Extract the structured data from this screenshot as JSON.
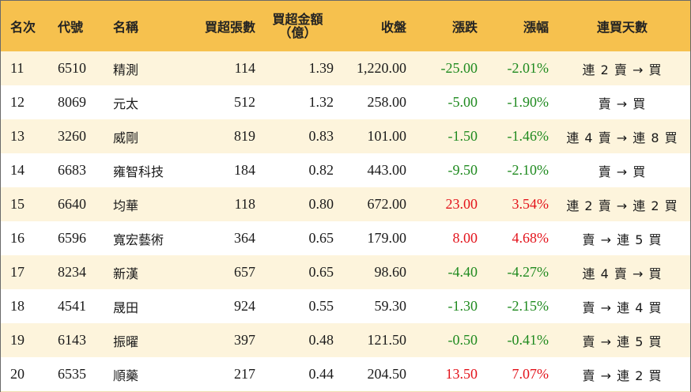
{
  "headers": {
    "rank": "名次",
    "code": "代號",
    "name": "名稱",
    "buy_lots": "買超張數",
    "buy_amount_line1": "買超金額",
    "buy_amount_line2": "（億）",
    "close": "收盤",
    "change": "漲跌",
    "change_pct": "漲幅",
    "streak": "連買天數"
  },
  "colors": {
    "header_bg": "#f6c14e",
    "row_alt_bg": "#fdf4dc",
    "up": "#e3131b",
    "down": "#1f8a1f"
  },
  "rows": [
    {
      "rank": "11",
      "code": "6510",
      "name": "精測",
      "buy_lots": "114",
      "buy_amount": "1.39",
      "close": "1,220.00",
      "change": "-25.00",
      "change_pct": "-2.01%",
      "streak": "連 2 賣 → 買",
      "direction": "down"
    },
    {
      "rank": "12",
      "code": "8069",
      "name": "元太",
      "buy_lots": "512",
      "buy_amount": "1.32",
      "close": "258.00",
      "change": "-5.00",
      "change_pct": "-1.90%",
      "streak": "賣 → 買",
      "direction": "down"
    },
    {
      "rank": "13",
      "code": "3260",
      "name": "威剛",
      "buy_lots": "819",
      "buy_amount": "0.83",
      "close": "101.00",
      "change": "-1.50",
      "change_pct": "-1.46%",
      "streak": "連 4 賣 → 連 8 買",
      "direction": "down"
    },
    {
      "rank": "14",
      "code": "6683",
      "name": "雍智科技",
      "buy_lots": "184",
      "buy_amount": "0.82",
      "close": "443.00",
      "change": "-9.50",
      "change_pct": "-2.10%",
      "streak": "賣 → 買",
      "direction": "down"
    },
    {
      "rank": "15",
      "code": "6640",
      "name": "均華",
      "buy_lots": "118",
      "buy_amount": "0.80",
      "close": "672.00",
      "change": "23.00",
      "change_pct": "3.54%",
      "streak": "連 2 賣 → 連 2 買",
      "direction": "up"
    },
    {
      "rank": "16",
      "code": "6596",
      "name": "寬宏藝術",
      "buy_lots": "364",
      "buy_amount": "0.65",
      "close": "179.00",
      "change": "8.00",
      "change_pct": "4.68%",
      "streak": "賣 → 連 5 買",
      "direction": "up"
    },
    {
      "rank": "17",
      "code": "8234",
      "name": "新漢",
      "buy_lots": "657",
      "buy_amount": "0.65",
      "close": "98.60",
      "change": "-4.40",
      "change_pct": "-4.27%",
      "streak": "連 4 賣 → 買",
      "direction": "down"
    },
    {
      "rank": "18",
      "code": "4541",
      "name": "晟田",
      "buy_lots": "924",
      "buy_amount": "0.55",
      "close": "59.30",
      "change": "-1.30",
      "change_pct": "-2.15%",
      "streak": "賣 → 連 4 買",
      "direction": "down"
    },
    {
      "rank": "19",
      "code": "6143",
      "name": "振曜",
      "buy_lots": "397",
      "buy_amount": "0.48",
      "close": "121.50",
      "change": "-0.50",
      "change_pct": "-0.41%",
      "streak": "賣 → 連 5 買",
      "direction": "down"
    },
    {
      "rank": "20",
      "code": "6535",
      "name": "順藥",
      "buy_lots": "217",
      "buy_amount": "0.44",
      "close": "204.50",
      "change": "13.50",
      "change_pct": "7.07%",
      "streak": "賣 → 連 2 買",
      "direction": "up"
    }
  ]
}
